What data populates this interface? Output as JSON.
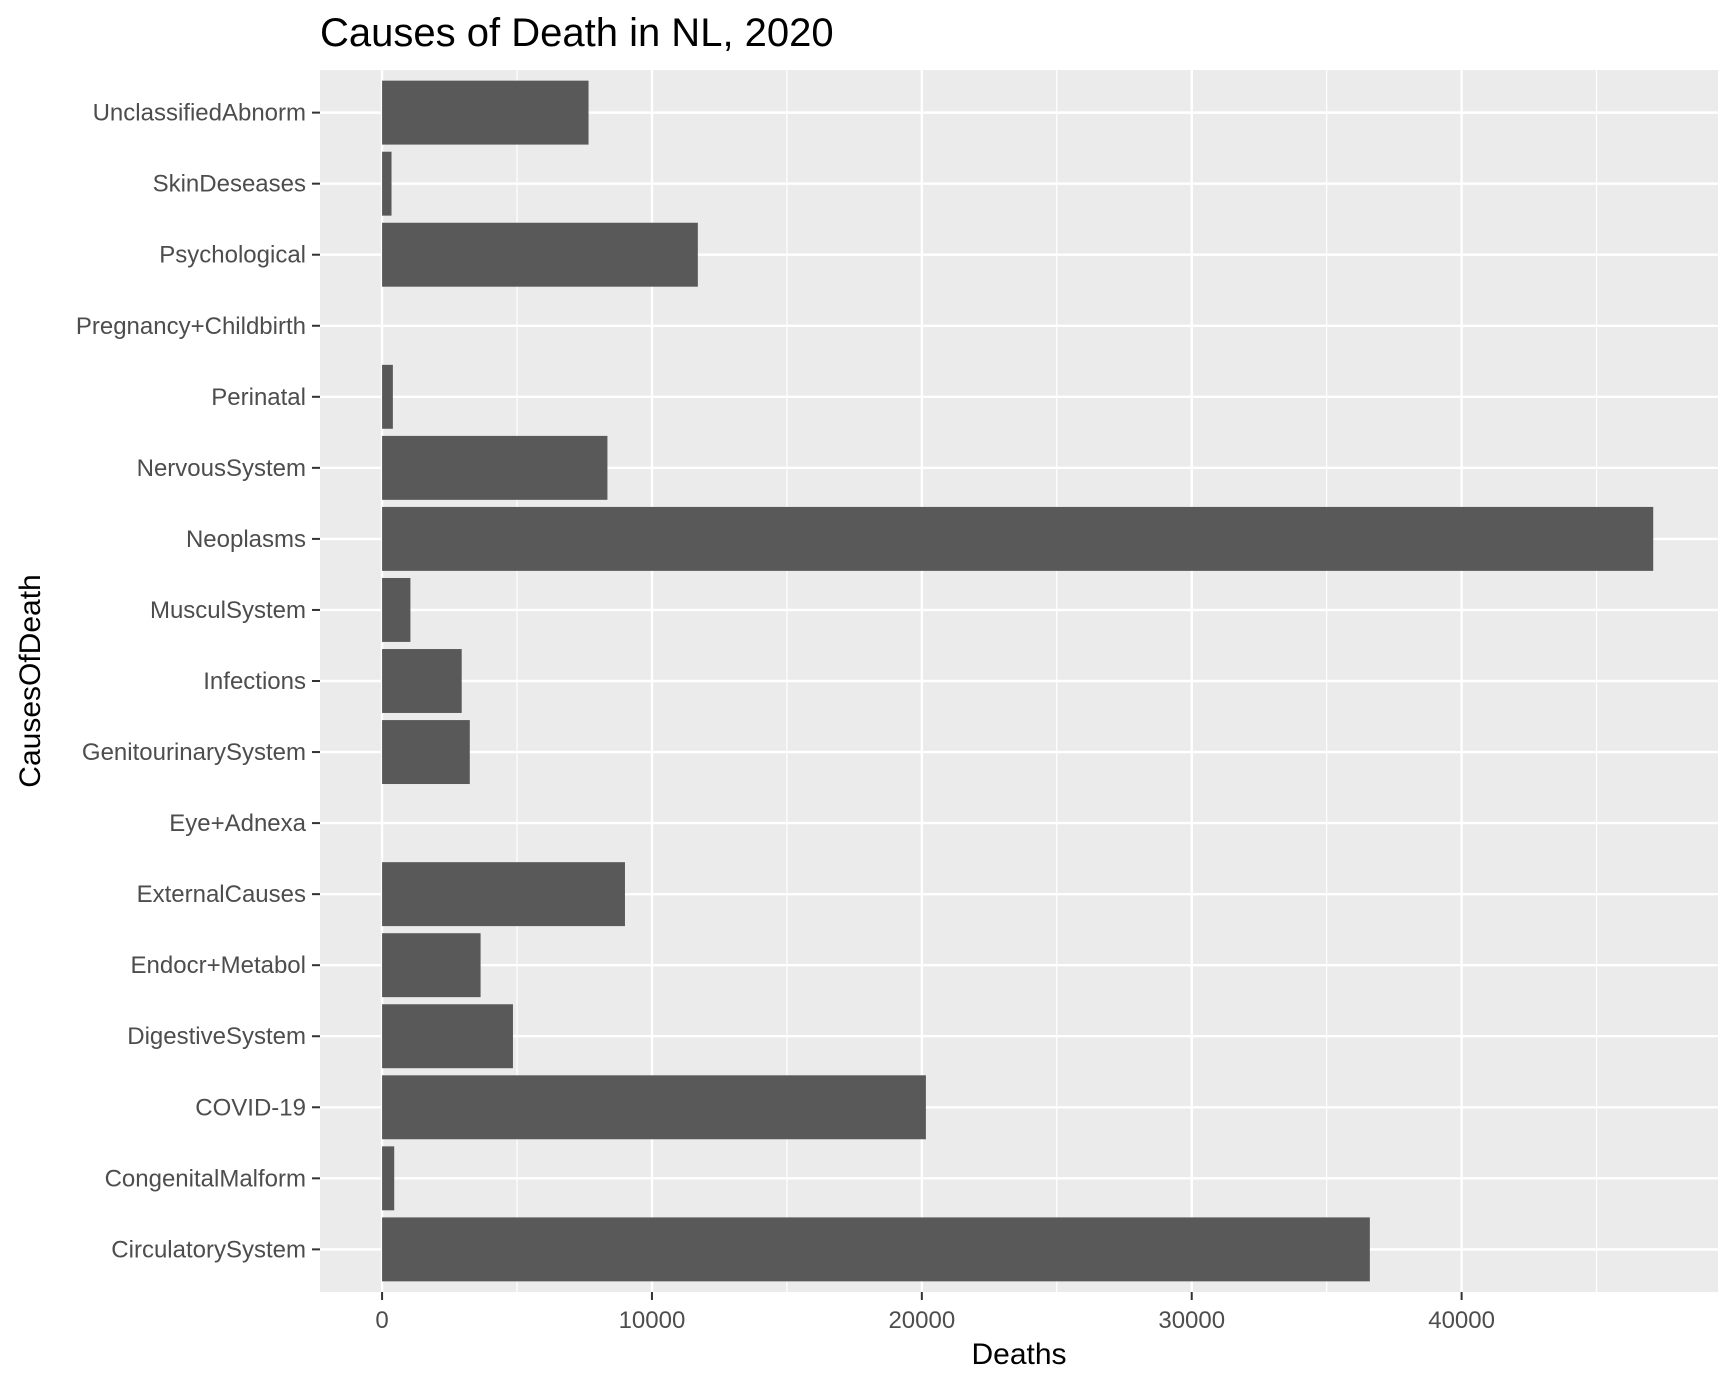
{
  "chart_data": {
    "type": "bar",
    "orientation": "horizontal",
    "title": "Causes of Death in NL, 2020",
    "xlabel": "Deaths",
    "ylabel": "CausesOfDeath",
    "xlim": [
      -2300,
      49500
    ],
    "xticks": [
      0,
      10000,
      20000,
      30000,
      40000
    ],
    "xtick_labels": [
      "0",
      "10000",
      "20000",
      "30000",
      "40000"
    ],
    "grid": true,
    "legend": "none",
    "colors": {
      "bar": "#595959",
      "panel": "#ebebeb",
      "grid": "#ffffff",
      "tick_text": "#4d4d4d",
      "tick_mark": "#333333"
    },
    "categories": [
      "CirculatorySystem",
      "CongenitalMalform",
      "COVID-19",
      "DigestiveSystem",
      "Endocr+Metabol",
      "ExternalCauses",
      "Eye+Adnexa",
      "GenitourinarySystem",
      "Infections",
      "MusculSystem",
      "Neoplasms",
      "NervousSystem",
      "Perinatal",
      "Pregnancy+Childbirth",
      "Psychological",
      "SkinDeseases",
      "UnclassifiedAbnorm"
    ],
    "values": [
      36600,
      450,
      20150,
      4850,
      3650,
      9000,
      0,
      3250,
      2950,
      1050,
      47100,
      8350,
      400,
      0,
      11700,
      350,
      7650
    ]
  }
}
